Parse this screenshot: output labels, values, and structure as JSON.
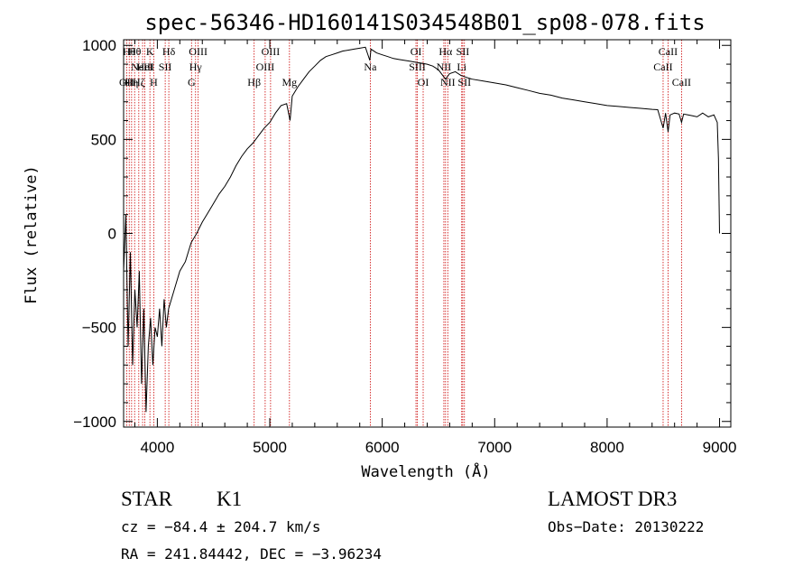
{
  "chart_data": {
    "type": "line",
    "title": "spec-56346-HD160141S034548B01_sp08-078.fits",
    "xlabel": "Wavelength (Å)",
    "ylabel": "Flux (relative)",
    "xlim": [
      3700,
      9100
    ],
    "ylim": [
      -1030,
      1030
    ],
    "x_ticks": [
      4000,
      5000,
      6000,
      7000,
      8000,
      9000
    ],
    "x_tick_labels": [
      "4000",
      "5000",
      "6000",
      "7000",
      "8000",
      "9000"
    ],
    "y_ticks": [
      -1000,
      -500,
      0,
      500,
      1000
    ],
    "y_tick_labels": [
      "−1000",
      "−500",
      "0",
      "500",
      "1000"
    ],
    "grid": false,
    "series": [
      {
        "x": [
          3700,
          3720,
          3740,
          3760,
          3780,
          3800,
          3820,
          3840,
          3860,
          3880,
          3900,
          3920,
          3940,
          3960,
          3980,
          4000,
          4020,
          4040,
          4060,
          4080,
          4100,
          4150,
          4200,
          4250,
          4300,
          4350,
          4400,
          4450,
          4500,
          4550,
          4600,
          4650,
          4700,
          4750,
          4800,
          4850,
          4900,
          4950,
          5000,
          5050,
          5100,
          5150,
          5180,
          5200,
          5250,
          5300,
          5350,
          5400,
          5450,
          5500,
          5550,
          5600,
          5650,
          5700,
          5750,
          5800,
          5850,
          5890,
          5900,
          5950,
          6000,
          6050,
          6100,
          6150,
          6200,
          6250,
          6300,
          6350,
          6400,
          6450,
          6500,
          6563,
          6600,
          6650,
          6700,
          6750,
          6800,
          6900,
          7000,
          7100,
          7200,
          7300,
          7400,
          7500,
          7600,
          7700,
          7800,
          7900,
          8000,
          8100,
          8200,
          8300,
          8400,
          8450,
          8498,
          8520,
          8542,
          8560,
          8600,
          8640,
          8662,
          8680,
          8720,
          8760,
          8800,
          8850,
          8900,
          8950,
          8980,
          8990,
          9000
        ],
        "y": [
          -200,
          100,
          -600,
          -100,
          -700,
          -300,
          -500,
          -200,
          -800,
          -400,
          -950,
          -600,
          -450,
          -700,
          -500,
          -550,
          -400,
          -600,
          -350,
          -500,
          -400,
          -300,
          -200,
          -150,
          -50,
          0,
          60,
          110,
          160,
          210,
          250,
          300,
          360,
          410,
          450,
          480,
          520,
          560,
          590,
          640,
          680,
          690,
          600,
          730,
          780,
          820,
          860,
          890,
          920,
          940,
          950,
          960,
          970,
          975,
          980,
          985,
          990,
          920,
          980,
          960,
          950,
          940,
          930,
          925,
          920,
          915,
          910,
          905,
          900,
          890,
          870,
          820,
          850,
          860,
          840,
          830,
          820,
          810,
          800,
          790,
          775,
          760,
          745,
          735,
          720,
          710,
          700,
          690,
          680,
          675,
          670,
          665,
          660,
          658,
          560,
          640,
          540,
          630,
          640,
          635,
          590,
          635,
          630,
          625,
          620,
          640,
          620,
          630,
          590,
          400,
          0
        ]
      }
    ],
    "spectral_lines": [
      {
        "x": 3727,
        "label": "OII",
        "row": 3
      },
      {
        "x": 3750,
        "label": "Hθ",
        "row": 1
      },
      {
        "x": 3771,
        "label": "Hη",
        "row": 3
      },
      {
        "x": 3798,
        "label": "Hθ",
        "row": 1
      },
      {
        "x": 3835,
        "label": "Hζ",
        "row": 3
      },
      {
        "x": 3869,
        "label": "NeIII",
        "row": 2
      },
      {
        "x": 3889,
        "label": "HeI",
        "row": 2
      },
      {
        "x": 3934,
        "label": "K",
        "row": 1
      },
      {
        "x": 3968,
        "label": "H",
        "row": 3
      },
      {
        "x": 4070,
        "label": "SII",
        "row": 2
      },
      {
        "x": 4102,
        "label": "Hδ",
        "row": 1
      },
      {
        "x": 4304,
        "label": "G",
        "row": 3
      },
      {
        "x": 4340,
        "label": "Hγ",
        "row": 2
      },
      {
        "x": 4363,
        "label": "OIII",
        "row": 1
      },
      {
        "x": 4861,
        "label": "Hβ",
        "row": 3
      },
      {
        "x": 4959,
        "label": "OIII",
        "row": 2
      },
      {
        "x": 5007,
        "label": "OIII",
        "row": 1
      },
      {
        "x": 5175,
        "label": "Mg",
        "row": 3
      },
      {
        "x": 5894,
        "label": "Na",
        "row": 2
      },
      {
        "x": 6300,
        "label": "OI",
        "row": 1
      },
      {
        "x": 6312,
        "label": "SIII",
        "row": 2
      },
      {
        "x": 6364,
        "label": "OI",
        "row": 3
      },
      {
        "x": 6548,
        "label": "NII",
        "row": 2
      },
      {
        "x": 6563,
        "label": "Hα",
        "row": 1
      },
      {
        "x": 6583,
        "label": "NII",
        "row": 3
      },
      {
        "x": 6707,
        "label": "Li",
        "row": 2
      },
      {
        "x": 6716,
        "label": "SII",
        "row": 1
      },
      {
        "x": 6731,
        "label": "SII",
        "row": 3
      },
      {
        "x": 8498,
        "label": "CaII",
        "row": 2
      },
      {
        "x": 8542,
        "label": "CaII",
        "row": 1
      },
      {
        "x": 8662,
        "label": "CaII",
        "row": 3
      }
    ],
    "line_color": "#000000",
    "marker_color": "#cc0000"
  },
  "info": {
    "object_class": "STAR",
    "subclass": "K1",
    "survey": "LAMOST DR3",
    "redshift": "cz = −84.4 ± 204.7 km/s",
    "obs_date": "Obs−Date: 20130222",
    "coords": "RA = 241.84442, DEC =  −3.96234"
  }
}
